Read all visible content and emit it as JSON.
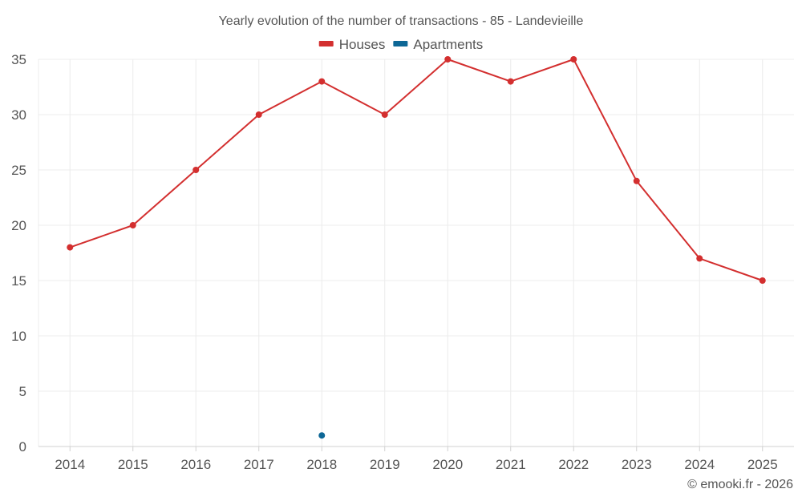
{
  "chart_data": {
    "type": "line",
    "title": "Yearly evolution of the number of transactions - 85 - Landevieille",
    "xlabel": "",
    "ylabel": "",
    "categories": [
      "2014",
      "2015",
      "2016",
      "2017",
      "2018",
      "2019",
      "2020",
      "2021",
      "2022",
      "2023",
      "2024",
      "2025"
    ],
    "ylim": [
      0,
      35
    ],
    "yticks": [
      0,
      5,
      10,
      15,
      20,
      25,
      30,
      35
    ],
    "grid": true,
    "legend_position": "top-center",
    "series": [
      {
        "name": "Houses",
        "color": "#d32f2f",
        "values": [
          18,
          20,
          25,
          30,
          33,
          30,
          35,
          33,
          35,
          24,
          17,
          15
        ]
      },
      {
        "name": "Apartments",
        "color": "#0d6796",
        "values": [
          null,
          null,
          null,
          null,
          1,
          null,
          null,
          null,
          null,
          null,
          null,
          null
        ]
      }
    ]
  },
  "credit": "© emooki.fr - 2026"
}
